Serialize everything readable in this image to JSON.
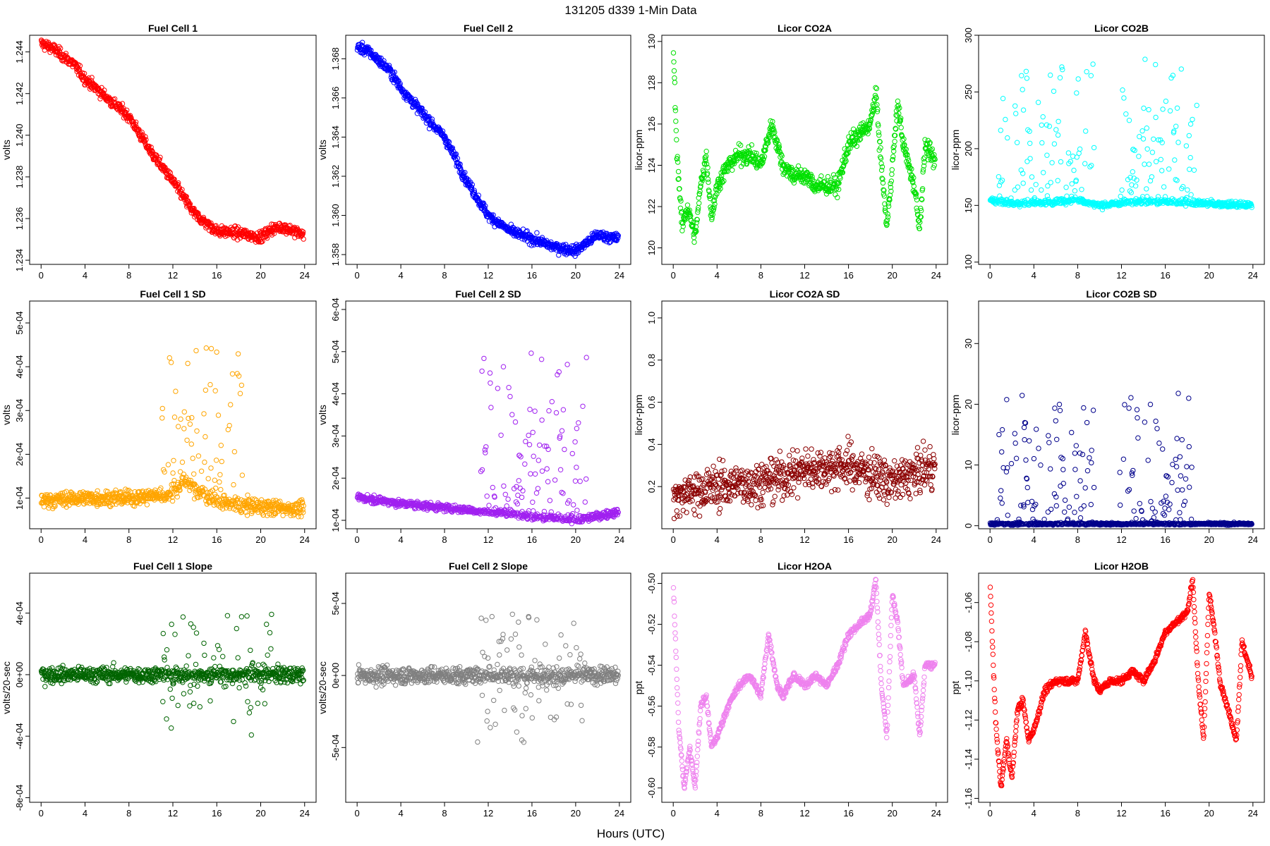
{
  "figure": {
    "title": "131205    d339    1-Min Data",
    "xlabel": "Hours (UTC)"
  },
  "chart_data": [
    {
      "type": "scatter",
      "title": "Fuel Cell 1",
      "ylabel": "volts",
      "color": "#ff0000",
      "xlim": [
        0,
        24
      ],
      "ylim": [
        1.2338,
        1.2448
      ],
      "xticks": [
        "0",
        "4",
        "8",
        "12",
        "16",
        "20",
        "24"
      ],
      "yticks": [
        "1.234",
        "1.236",
        "1.238",
        "1.240",
        "1.242",
        "1.244"
      ],
      "trend_x": [
        0,
        1,
        2,
        3,
        4,
        6,
        8,
        10,
        12,
        14,
        16,
        18,
        20,
        21,
        22,
        24
      ],
      "trend_y": [
        1.2444,
        1.2442,
        1.2438,
        1.2434,
        1.2427,
        1.2418,
        1.2409,
        1.2392,
        1.2378,
        1.2362,
        1.2354,
        1.2353,
        1.2351,
        1.2355,
        1.2356,
        1.2352
      ],
      "noise": 0.0003
    },
    {
      "type": "scatter",
      "title": "Fuel Cell 2",
      "ylabel": "volts",
      "color": "#0000ff",
      "xlim": [
        0,
        24
      ],
      "ylim": [
        1.3575,
        1.3692
      ],
      "xticks": [
        "0",
        "4",
        "8",
        "12",
        "16",
        "20",
        "24"
      ],
      "yticks": [
        "1.358",
        "1.360",
        "1.362",
        "1.364",
        "1.366",
        "1.368"
      ],
      "trend_x": [
        0,
        1,
        2,
        3,
        4,
        6,
        8,
        10,
        12,
        14,
        16,
        18,
        20,
        22,
        24
      ],
      "trend_y": [
        1.3686,
        1.3684,
        1.3679,
        1.3674,
        1.3665,
        1.3652,
        1.364,
        1.3618,
        1.36,
        1.3592,
        1.3588,
        1.3584,
        1.3582,
        1.359,
        1.3588
      ],
      "noise": 0.0003
    },
    {
      "type": "scatter",
      "title": "Licor CO2A",
      "ylabel": "licor-ppm",
      "color": "#00e000",
      "xlim": [
        0,
        24
      ],
      "ylim": [
        119.2,
        130.3
      ],
      "xticks": [
        "0",
        "4",
        "8",
        "12",
        "16",
        "20",
        "24"
      ],
      "yticks": [
        "120",
        "122",
        "124",
        "126",
        "128",
        "130"
      ],
      "trend_x": [
        0,
        0.3,
        0.8,
        1.3,
        2,
        2.5,
        3,
        3.5,
        4,
        5,
        6,
        7,
        8,
        8.5,
        9,
        10,
        11,
        12,
        13,
        14,
        15,
        16,
        17,
        18,
        18.5,
        19,
        19.5,
        20,
        20.5,
        21,
        22,
        22.5,
        23,
        24
      ],
      "trend_y": [
        130,
        125,
        121,
        122,
        120.5,
        123,
        124.5,
        121.5,
        123,
        124,
        124.5,
        124.5,
        124,
        125,
        126,
        124,
        123.5,
        123.5,
        123,
        123,
        123,
        125,
        125.5,
        126,
        127.5,
        124,
        121,
        124,
        127,
        125,
        123,
        121,
        125,
        124
      ],
      "noise": 0.5
    },
    {
      "type": "scatter",
      "title": "Licor CO2B",
      "ylabel": "licor-ppm",
      "color": "#00ffff",
      "xlim": [
        0,
        24
      ],
      "ylim": [
        98,
        300
      ],
      "xticks": [
        "0",
        "4",
        "8",
        "12",
        "16",
        "20",
        "24"
      ],
      "yticks": [
        "100",
        "150",
        "200",
        "250",
        "300"
      ],
      "trend_x": [
        0,
        2,
        4,
        6,
        8,
        10,
        12,
        14,
        16,
        18,
        19,
        24
      ],
      "trend_y": [
        155,
        152,
        152,
        153,
        155,
        150,
        152,
        154,
        153,
        152,
        152,
        150
      ],
      "noise": 3,
      "spike_ranges": [
        [
          0.5,
          9.5
        ],
        [
          11.8,
          19
        ]
      ],
      "spike_max": 280
    },
    {
      "type": "scatter",
      "title": "Fuel Cell 1 SD",
      "ylabel": "volts",
      "color": "#ffa500",
      "xlim": [
        0,
        24
      ],
      "ylim": [
        3e-05,
        0.00055
      ],
      "xticks": [
        "0",
        "4",
        "8",
        "12",
        "16",
        "20",
        "24"
      ],
      "yticks": [
        "1e-04",
        "2e-04",
        "3e-04",
        "4e-04",
        "5e-04"
      ],
      "trend_x": [
        0,
        4,
        8,
        12,
        13,
        16,
        20,
        24
      ],
      "trend_y": [
        9.5e-05,
        0.0001,
        0.0001,
        0.00011,
        0.00014,
        9e-05,
        8e-05,
        7.5e-05
      ],
      "noise": 2e-05,
      "spike_ranges": [
        [
          11,
          18.5
        ]
      ],
      "spike_max": 0.00045
    },
    {
      "type": "scatter",
      "title": "Fuel Cell 2 SD",
      "ylabel": "volts",
      "color": "#a020f0",
      "xlim": [
        0,
        24
      ],
      "ylim": [
        8e-05,
        0.00062
      ],
      "xticks": [
        "0",
        "4",
        "8",
        "12",
        "16",
        "20",
        "24"
      ],
      "yticks": [
        "1e-04",
        "2e-04",
        "3e-04",
        "4e-04",
        "5e-04",
        "6e-04"
      ],
      "trend_x": [
        0,
        4,
        8,
        12,
        16,
        20,
        24
      ],
      "trend_y": [
        0.000155,
        0.00014,
        0.00013,
        0.00012,
        0.00011,
        0.0001,
        0.00012
      ],
      "noise": 1e-05,
      "spike_ranges": [
        [
          11,
          21
        ]
      ],
      "spike_max": 0.0005
    },
    {
      "type": "scatter",
      "title": "Licor CO2A SD",
      "ylabel": "licor-ppm",
      "color": "#8b0000",
      "xlim": [
        0,
        24
      ],
      "ylim": [
        0,
        1.08
      ],
      "xticks": [
        "0",
        "4",
        "8",
        "12",
        "16",
        "20",
        "24"
      ],
      "yticks": [
        "0.2",
        "0.4",
        "0.6",
        "0.8",
        "1.0"
      ],
      "trend_x": [
        0,
        4,
        8,
        12,
        16,
        20,
        24
      ],
      "trend_y": [
        0.15,
        0.2,
        0.22,
        0.28,
        0.3,
        0.22,
        0.3
      ],
      "noise": 0.12
    },
    {
      "type": "scatter",
      "title": "Licor CO2B SD",
      "ylabel": "licor-ppm",
      "color": "#00008b",
      "xlim": [
        0,
        24
      ],
      "ylim": [
        -0.5,
        37
      ],
      "xticks": [
        "0",
        "4",
        "8",
        "12",
        "16",
        "20",
        "24"
      ],
      "yticks": [
        "0",
        "10",
        "20",
        "30"
      ],
      "trend_x": [
        0,
        24
      ],
      "trend_y": [
        0.3,
        0.3
      ],
      "noise": 0.2,
      "spike_ranges": [
        [
          0.5,
          9.5
        ],
        [
          11.8,
          18.5
        ]
      ],
      "spike_max": 22
    },
    {
      "type": "scatter",
      "title": "Fuel Cell 1 Slope",
      "ylabel": "volts/20-sec",
      "color": "#006400",
      "xlim": [
        0,
        24
      ],
      "ylim": [
        -0.00083,
        0.00066
      ],
      "xticks": [
        "0",
        "4",
        "8",
        "12",
        "16",
        "20",
        "24"
      ],
      "yticks": [
        "-8e-04",
        "-4e-04",
        "0e+00",
        "4e-04"
      ],
      "trend_x": [
        0,
        24
      ],
      "trend_y": [
        0,
        0
      ],
      "noise": 6e-05,
      "spike_ranges": [
        [
          11,
          21
        ]
      ],
      "spike_max": 0.0005
    },
    {
      "type": "scatter",
      "title": "Fuel Cell 2 Slope",
      "ylabel": "volts/20-sec",
      "color": "#808080",
      "xlim": [
        0,
        24
      ],
      "ylim": [
        -0.00088,
        0.00071
      ],
      "xticks": [
        "0",
        "4",
        "8",
        "12",
        "16",
        "20",
        "24"
      ],
      "yticks": [
        "-5e-04",
        "0e+00",
        "5e-04"
      ],
      "trend_x": [
        0,
        24
      ],
      "trend_y": [
        0,
        0
      ],
      "noise": 7e-05,
      "spike_ranges": [
        [
          11,
          21
        ]
      ],
      "spike_max": 0.0006
    },
    {
      "type": "scatter",
      "title": "Licor H2OA",
      "ylabel": "ppt",
      "color": "#ee82ee",
      "xlim": [
        0,
        24
      ],
      "ylim": [
        -0.607,
        -0.495
      ],
      "xticks": [
        "0",
        "4",
        "8",
        "12",
        "16",
        "20",
        "24"
      ],
      "yticks": [
        "-0.60",
        "-0.58",
        "-0.56",
        "-0.54",
        "-0.52",
        "-0.50"
      ],
      "trend_x": [
        0,
        0.5,
        1,
        1.5,
        2,
        2.5,
        3,
        3.5,
        4,
        5,
        6,
        7,
        8,
        8.7,
        9.5,
        10,
        11,
        12,
        13,
        14,
        15,
        16,
        17,
        18,
        18.5,
        19,
        19.5,
        20,
        20.5,
        21,
        22,
        22.5,
        23,
        24
      ],
      "trend_y": [
        -0.5,
        -0.57,
        -0.6,
        -0.58,
        -0.6,
        -0.56,
        -0.555,
        -0.58,
        -0.575,
        -0.56,
        -0.55,
        -0.545,
        -0.555,
        -0.525,
        -0.55,
        -0.555,
        -0.545,
        -0.55,
        -0.545,
        -0.55,
        -0.54,
        -0.525,
        -0.52,
        -0.515,
        -0.498,
        -0.55,
        -0.575,
        -0.505,
        -0.52,
        -0.55,
        -0.545,
        -0.575,
        -0.54,
        -0.54
      ],
      "noise": 0.002
    },
    {
      "type": "scatter",
      "title": "Licor H2OB",
      "ylabel": "ppt",
      "color": "#ff0000",
      "xlim": [
        0,
        24
      ],
      "ylim": [
        -1.162,
        -1.045
      ],
      "xticks": [
        "0",
        "4",
        "8",
        "12",
        "16",
        "20",
        "24"
      ],
      "yticks": [
        "-1.16",
        "-1.14",
        "-1.12",
        "-1.10",
        "-1.08",
        "-1.06"
      ],
      "trend_x": [
        0,
        0.5,
        1,
        1.5,
        2,
        2.5,
        3,
        3.5,
        4,
        5,
        6,
        7,
        8,
        8.7,
        9.5,
        10,
        11,
        12,
        13,
        14,
        15,
        16,
        17,
        18,
        18.5,
        19,
        19.5,
        20,
        20.5,
        21,
        22,
        22.5,
        23,
        24
      ],
      "trend_y": [
        -1.05,
        -1.12,
        -1.155,
        -1.13,
        -1.15,
        -1.115,
        -1.11,
        -1.13,
        -1.125,
        -1.105,
        -1.1,
        -1.1,
        -1.1,
        -1.075,
        -1.1,
        -1.105,
        -1.1,
        -1.1,
        -1.095,
        -1.1,
        -1.09,
        -1.075,
        -1.07,
        -1.065,
        -1.048,
        -1.1,
        -1.13,
        -1.055,
        -1.075,
        -1.1,
        -1.12,
        -1.13,
        -1.08,
        -1.1
      ],
      "noise": 0.002
    }
  ]
}
